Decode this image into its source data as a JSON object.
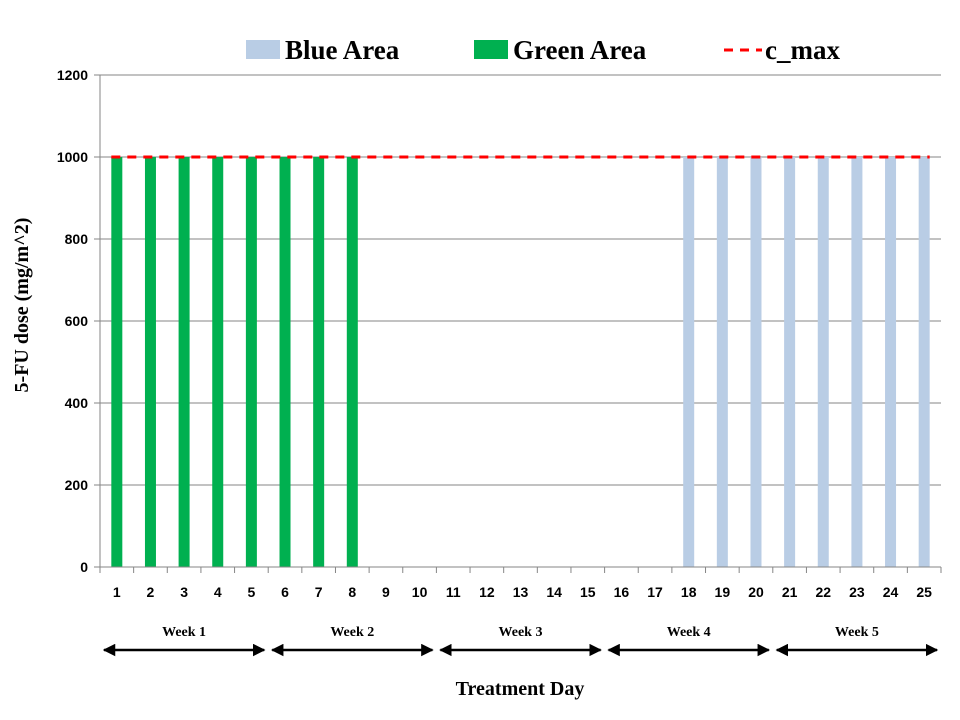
{
  "chart_data": {
    "type": "bar",
    "title": "",
    "xlabel": "Treatment Day",
    "ylabel": "5-FU dose (mg/m^2)",
    "categories": [
      "1",
      "2",
      "3",
      "4",
      "5",
      "6",
      "7",
      "8",
      "9",
      "10",
      "11",
      "12",
      "13",
      "14",
      "15",
      "16",
      "17",
      "18",
      "19",
      "20",
      "21",
      "22",
      "23",
      "24",
      "25"
    ],
    "ylim": [
      0,
      1200
    ],
    "yticks": [
      0,
      200,
      400,
      600,
      800,
      1000,
      1200
    ],
    "grid": true,
    "legend_position": "top",
    "series": [
      {
        "name": "Blue Area",
        "color": "#b9cde5",
        "values": [
          0,
          0,
          0,
          0,
          0,
          0,
          0,
          0,
          0,
          0,
          0,
          0,
          0,
          0,
          0,
          0,
          0,
          1000,
          1000,
          1000,
          1000,
          1000,
          1000,
          1000,
          1000
        ]
      },
      {
        "name": "Green Area",
        "color": "#00b050",
        "values": [
          1000,
          1000,
          1000,
          1000,
          1000,
          1000,
          1000,
          1000,
          0,
          0,
          0,
          0,
          0,
          0,
          0,
          0,
          0,
          0,
          0,
          0,
          0,
          0,
          0,
          0,
          0
        ]
      }
    ],
    "reference_line": {
      "name": "c_max",
      "value": 1000,
      "color": "#ff0000",
      "style": "dashed"
    },
    "weeks": [
      {
        "label": "Week 1",
        "start_day": 1,
        "end_day": 5
      },
      {
        "label": "Week 2",
        "start_day": 6,
        "end_day": 10
      },
      {
        "label": "Week 3",
        "start_day": 11,
        "end_day": 15
      },
      {
        "label": "Week 4",
        "start_day": 16,
        "end_day": 20
      },
      {
        "label": "Week 5",
        "start_day": 21,
        "end_day": 25
      }
    ]
  }
}
